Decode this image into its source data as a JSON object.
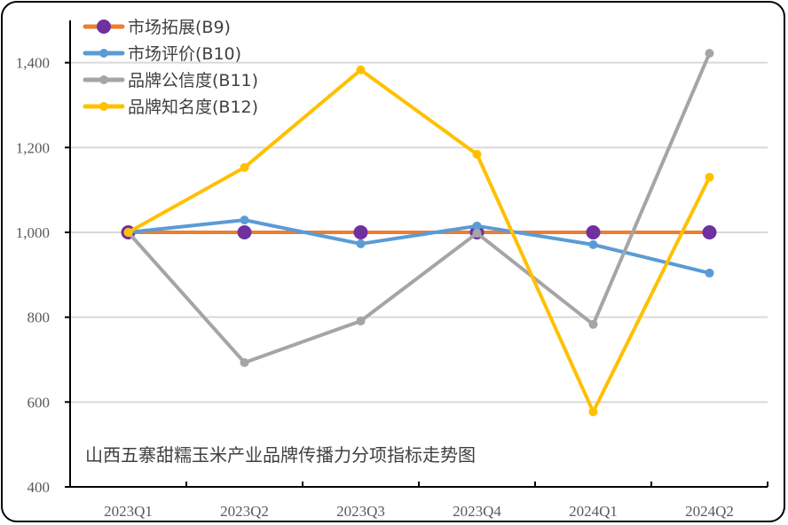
{
  "chart_data": {
    "type": "line",
    "title": "山西五寨甜糯玉米产业品牌传播力分项指标走势图",
    "xlabel": "",
    "ylabel": "",
    "categories": [
      "2023Q1",
      "2023Q2",
      "2023Q3",
      "2023Q4",
      "2024Q1",
      "2024Q2"
    ],
    "ylim": [
      400,
      1500
    ],
    "yticks": [
      400,
      600,
      800,
      1000,
      1200,
      1400
    ],
    "ytick_labels": [
      "400",
      "600",
      "800",
      "1,000",
      "1,200",
      "1,400"
    ],
    "grid": true,
    "legend_position": "top-left",
    "series": [
      {
        "name": "市场拓展(B9)",
        "color": "#ED7D31",
        "marker_color": "#7030A0",
        "marker_size": "large",
        "values": [
          1000,
          1000,
          1000,
          1000,
          1000,
          1000
        ]
      },
      {
        "name": "市场评价(B10)",
        "color": "#5B9BD5",
        "marker_color": "#5B9BD5",
        "marker_size": "small",
        "values": [
          1000,
          1029,
          973,
          1015,
          971,
          904
        ]
      },
      {
        "name": "品牌公信度(B11)",
        "color": "#A5A5A5",
        "marker_color": "#A5A5A5",
        "marker_size": "small",
        "values": [
          1000,
          693,
          791,
          998,
          783,
          1422
        ]
      },
      {
        "name": "品牌知名度(B12)",
        "color": "#FFC000",
        "marker_color": "#FFC000",
        "marker_size": "small",
        "values": [
          1000,
          1153,
          1383,
          1184,
          577,
          1130
        ]
      }
    ]
  }
}
